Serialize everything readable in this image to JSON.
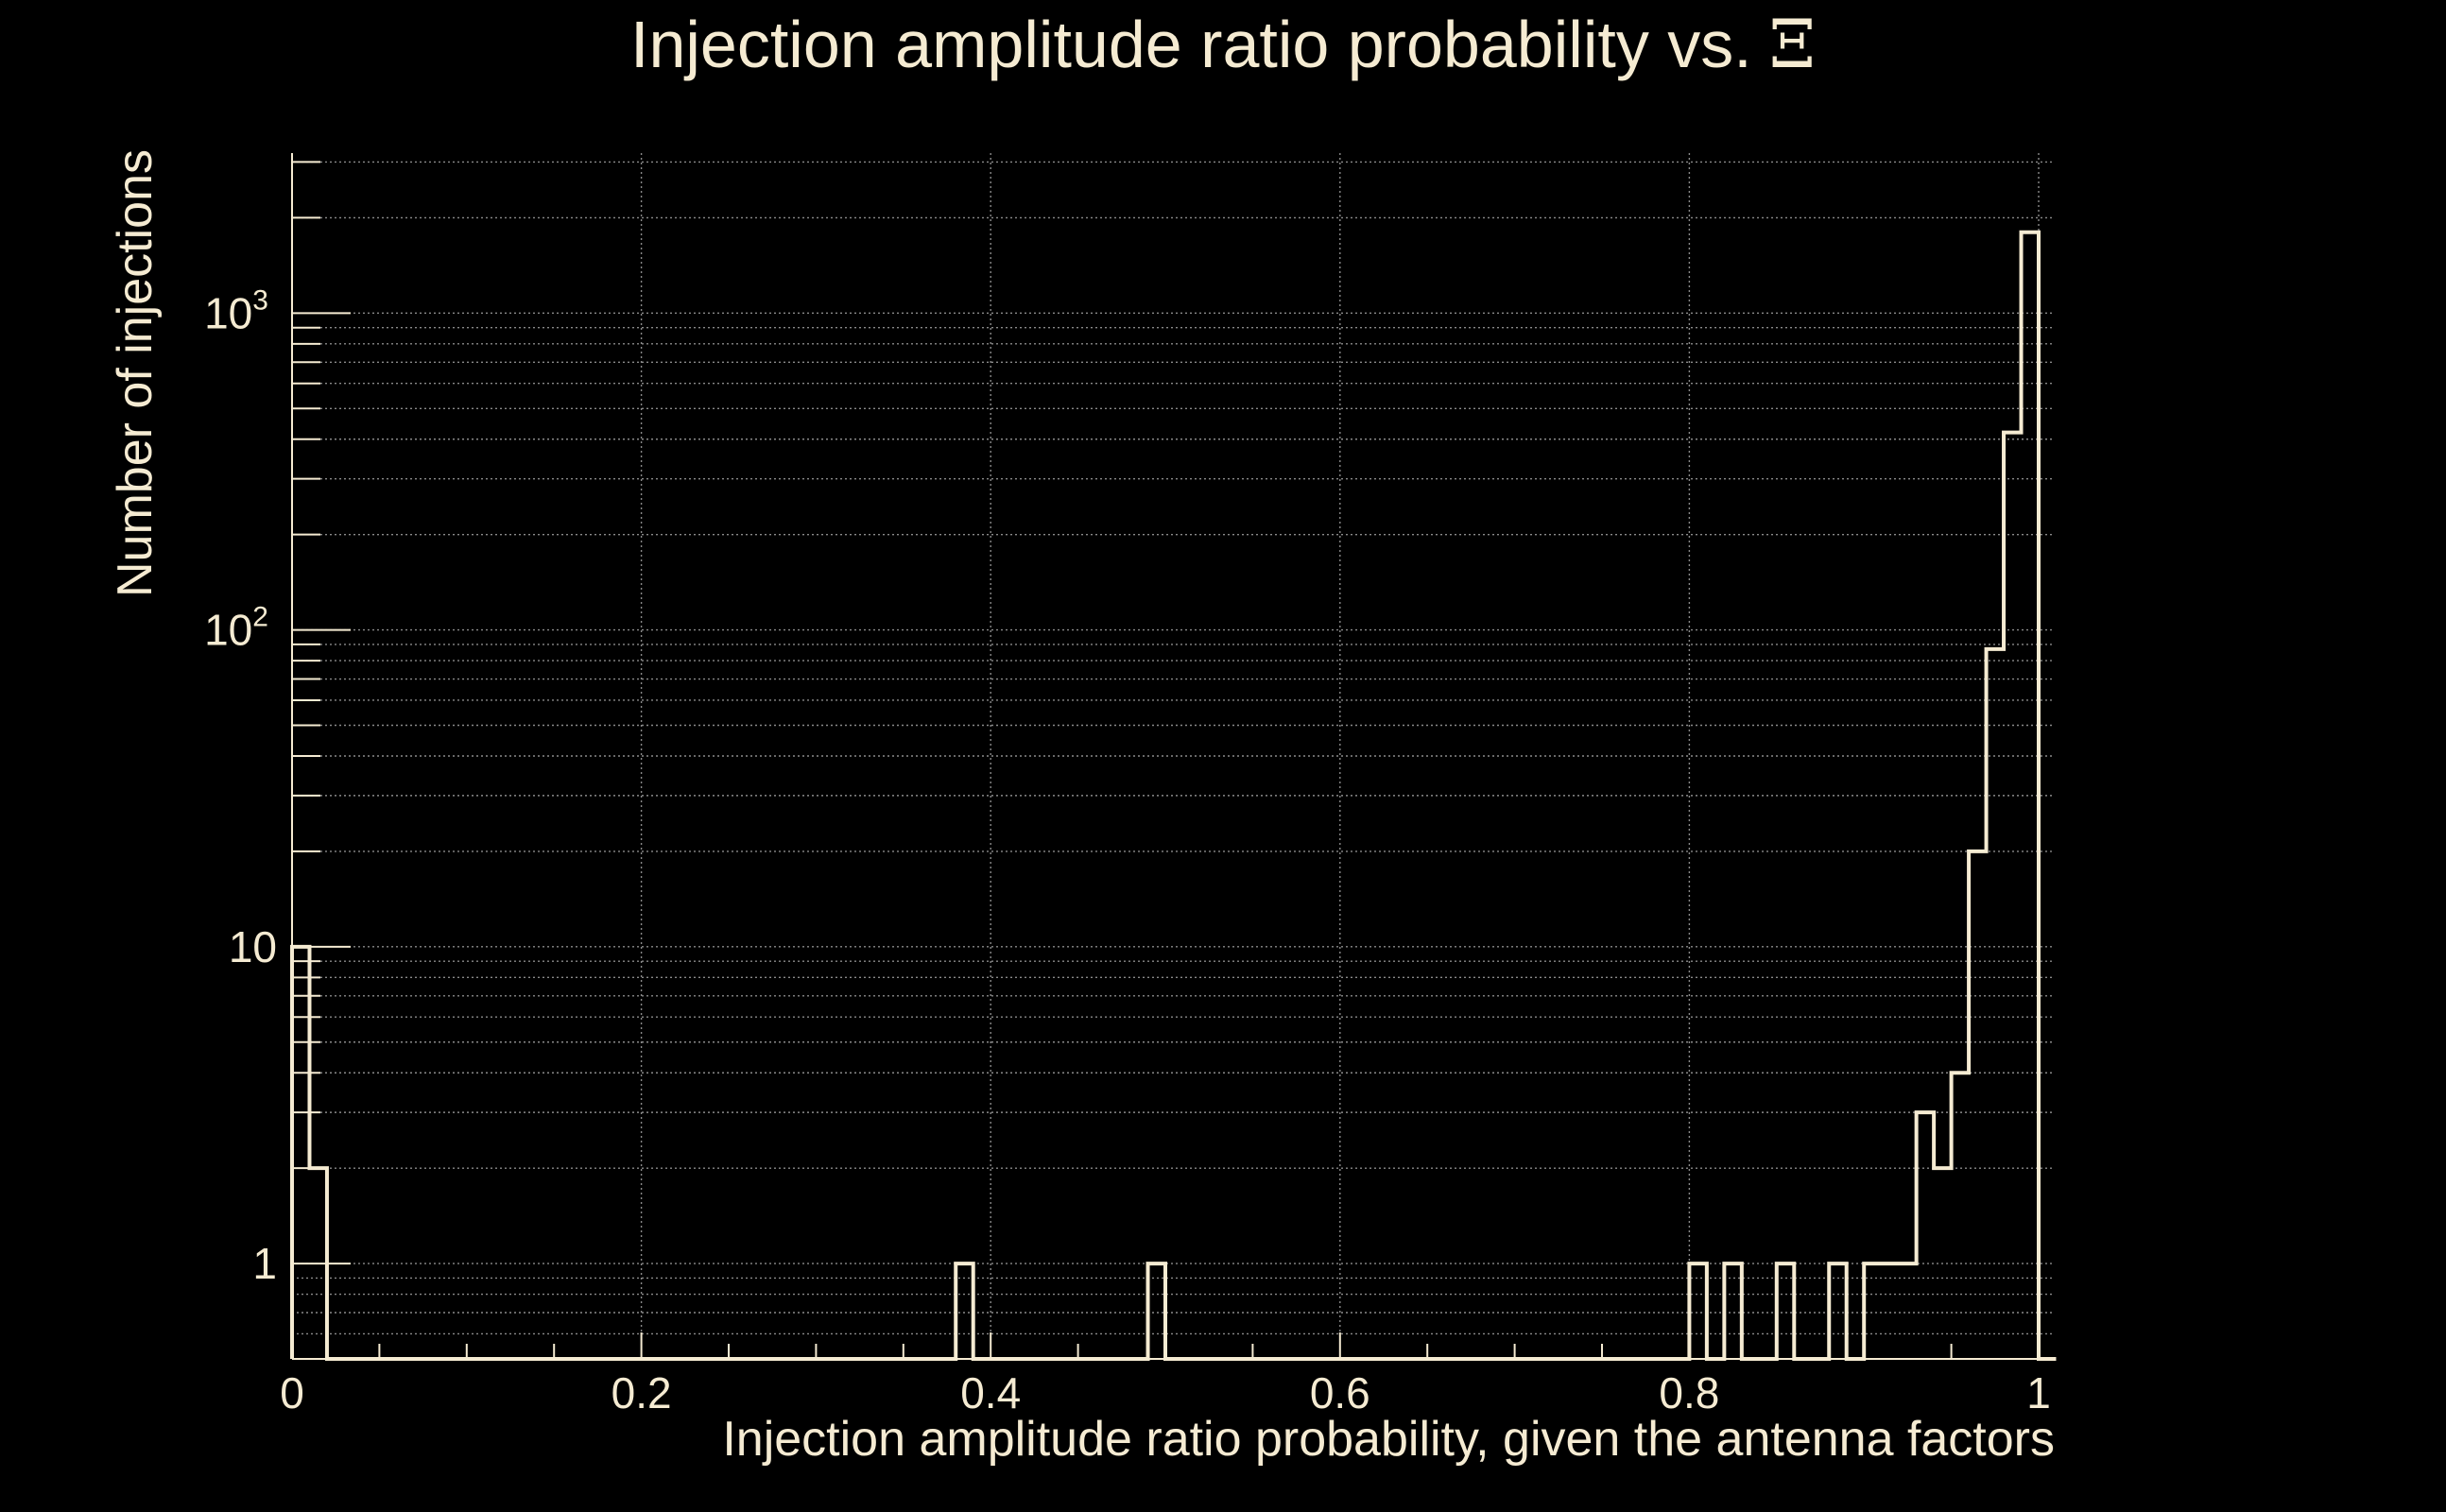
{
  "colors": {
    "background": "#000000",
    "foreground": "#f5ebd2",
    "grid": "#8a8a8a"
  },
  "chart_data": {
    "type": "bar",
    "histogram": true,
    "title": "Injection amplitude ratio probability vs.",
    "title_symbol": "Ξ",
    "xlabel": "Injection amplitude ratio probability, given the antenna factors",
    "ylabel": "Number of injections",
    "xlim": [
      0,
      1.01
    ],
    "ylim": [
      0.5,
      3200
    ],
    "yscale": "log",
    "grid": true,
    "x_ticks": [
      {
        "value": 0,
        "label": "0"
      },
      {
        "value": 0.2,
        "label": "0.2"
      },
      {
        "value": 0.4,
        "label": "0.4"
      },
      {
        "value": 0.6,
        "label": "0.6"
      },
      {
        "value": 0.8,
        "label": "0.8"
      },
      {
        "value": 1,
        "label": "1"
      }
    ],
    "y_ticks": [
      {
        "value": 1,
        "base": "1",
        "exp": ""
      },
      {
        "value": 10,
        "base": "10",
        "exp": ""
      },
      {
        "value": 100,
        "base": "10",
        "exp": "2"
      },
      {
        "value": 1000,
        "base": "10",
        "exp": "3"
      }
    ],
    "bin_width": 0.01,
    "bins": [
      {
        "x": 0.0,
        "count": 10
      },
      {
        "x": 0.01,
        "count": 2
      },
      {
        "x": 0.38,
        "count": 1
      },
      {
        "x": 0.49,
        "count": 1
      },
      {
        "x": 0.8,
        "count": 1
      },
      {
        "x": 0.82,
        "count": 1
      },
      {
        "x": 0.85,
        "count": 1
      },
      {
        "x": 0.88,
        "count": 1
      },
      {
        "x": 0.9,
        "count": 1
      },
      {
        "x": 0.91,
        "count": 1
      },
      {
        "x": 0.92,
        "count": 1
      },
      {
        "x": 0.93,
        "count": 3
      },
      {
        "x": 0.94,
        "count": 2
      },
      {
        "x": 0.95,
        "count": 4
      },
      {
        "x": 0.96,
        "count": 20
      },
      {
        "x": 0.97,
        "count": 87
      },
      {
        "x": 0.98,
        "count": 420
      },
      {
        "x": 0.99,
        "count": 1800
      }
    ]
  }
}
